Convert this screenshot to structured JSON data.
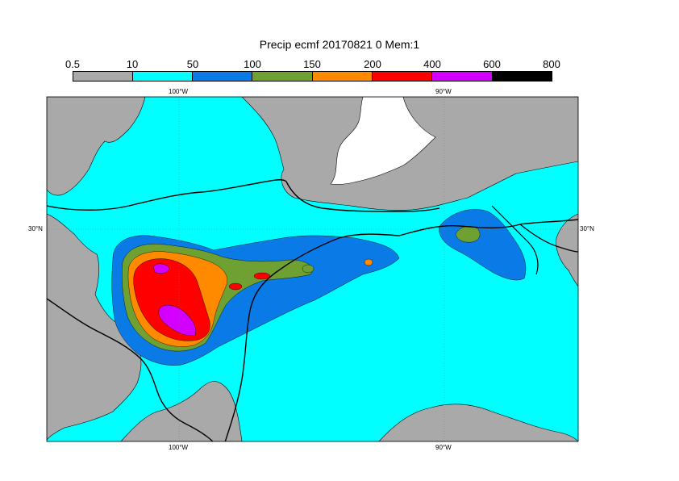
{
  "title": "Precip ecmf 20170821 0 Mem:1",
  "legend": {
    "thresholds": [
      "0.5",
      "10",
      "50",
      "100",
      "150",
      "200",
      "400",
      "600",
      "800"
    ],
    "colors": [
      "#a9a9a9",
      "#00ffff",
      "#0a7ae6",
      "#6ea132",
      "#ff8a00",
      "#ff0000",
      "#d400ff",
      "#000000"
    ]
  },
  "map": {
    "lon_labels_top": [
      "100°W",
      "90°W"
    ],
    "lon_labels_bottom": [
      "100°W",
      "90°W"
    ],
    "lat_labels_left": [
      "30°N"
    ],
    "lat_labels_right": [
      "30°N"
    ]
  }
}
